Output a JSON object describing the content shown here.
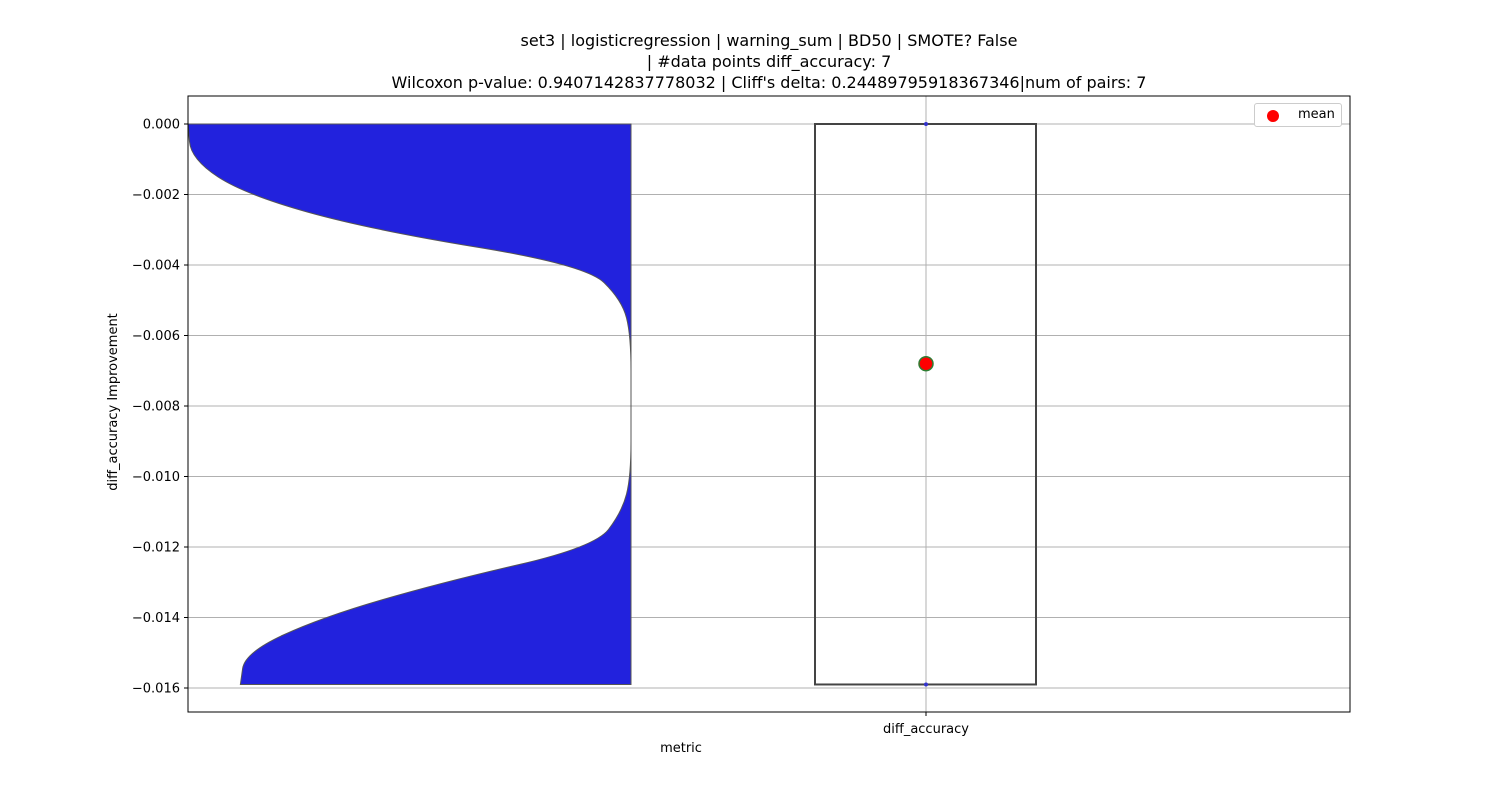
{
  "chart_data": {
    "type": "violin+box",
    "title_lines": [
      "set3 | logisticregression | warning_sum | BD50 | SMOTE? False",
      "| #data points diff_accuracy: 7",
      "Wilcoxon p-value: 0.9407142837778032 | Cliff's delta: 0.24489795918367346|num of pairs: 7"
    ],
    "xlabel": "metric",
    "ylabel": "diff_accuracy Improvement",
    "categories": [
      "diff_accuracy"
    ],
    "ylim": [
      -0.0167,
      0.0008
    ],
    "yticks": [
      0.0,
      -0.002,
      -0.004,
      -0.006,
      -0.008,
      -0.01,
      -0.012,
      -0.014,
      -0.016
    ],
    "ytick_labels": [
      "0.000",
      "−0.002",
      "−0.004",
      "−0.006",
      "−0.008",
      "−0.010",
      "−0.012",
      "−0.014",
      "−0.016"
    ],
    "grid": true,
    "violin": {
      "color": "#2222dd",
      "side": "left",
      "range": [
        -0.0159,
        0.0
      ],
      "density_profile": [
        [
          0.0,
          1.0
        ],
        [
          -0.001,
          0.98
        ],
        [
          -0.002,
          0.86
        ],
        [
          -0.003,
          0.58
        ],
        [
          -0.004,
          0.1
        ],
        [
          -0.005,
          0.02
        ],
        [
          -0.006,
          0.0
        ],
        [
          -0.008,
          0.0
        ],
        [
          -0.01,
          0.0
        ],
        [
          -0.011,
          0.02
        ],
        [
          -0.012,
          0.08
        ],
        [
          -0.013,
          0.42
        ],
        [
          -0.014,
          0.69
        ],
        [
          -0.015,
          0.86
        ],
        [
          -0.0159,
          0.87
        ]
      ]
    },
    "box": {
      "q1": -0.0159,
      "median": -0.0159,
      "q3": 0.0,
      "whisker_low": -0.0159,
      "whisker_high": 0.0,
      "mean": -0.0068,
      "edge_color": "#444444"
    },
    "legend": {
      "position": "top-right",
      "entries": [
        {
          "label": "mean",
          "color": "#ff0000"
        }
      ]
    }
  }
}
